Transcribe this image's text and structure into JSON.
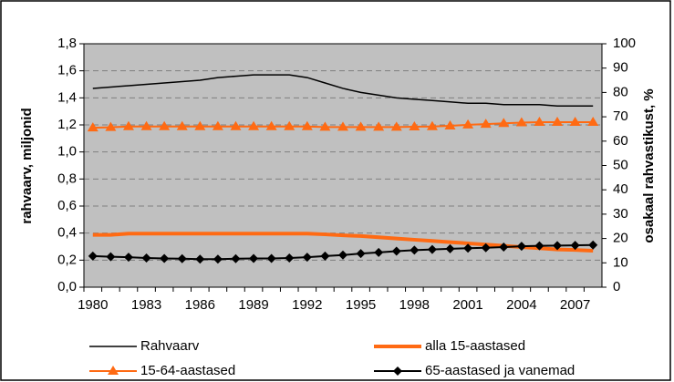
{
  "chart_data": {
    "type": "line",
    "y_label": "rahvaarv, miljonid",
    "y2_label": "osakaal rahvastikust, %",
    "categories": [
      "1980",
      null,
      null,
      "1983",
      null,
      null,
      "1986",
      null,
      null,
      "1989",
      null,
      null,
      "1992",
      null,
      null,
      "1995",
      null,
      null,
      "1998",
      null,
      null,
      "2001",
      null,
      null,
      "2004",
      null,
      null,
      "2007",
      null
    ],
    "ylim": [
      0,
      1.8
    ],
    "yticks": [
      {
        "value": 0,
        "label": "0,0"
      },
      {
        "value": 0.2,
        "label": "0,2"
      },
      {
        "value": 0.4,
        "label": "0,4"
      },
      {
        "value": 0.6,
        "label": "0,6"
      },
      {
        "value": 0.8,
        "label": "0,8"
      },
      {
        "value": 1.0,
        "label": "1,0"
      },
      {
        "value": 1.2,
        "label": "1,2"
      },
      {
        "value": 1.4,
        "label": "1,4"
      },
      {
        "value": 1.6,
        "label": "1,6"
      },
      {
        "value": 1.8,
        "label": "1,8"
      }
    ],
    "y2lim": [
      0,
      100
    ],
    "y2ticks": [
      0,
      10,
      20,
      30,
      40,
      50,
      60,
      70,
      80,
      90,
      100
    ],
    "grid": true,
    "background": "#c0c0c0",
    "series": [
      {
        "name": "Rahvaarv",
        "color": "#000000",
        "marker": "none",
        "line_width": 1.5,
        "values": [
          1.47,
          1.48,
          1.49,
          1.5,
          1.51,
          1.52,
          1.53,
          1.55,
          1.56,
          1.57,
          1.57,
          1.57,
          1.55,
          1.51,
          1.47,
          1.44,
          1.42,
          1.4,
          1.39,
          1.38,
          1.37,
          1.36,
          1.36,
          1.35,
          1.35,
          1.35,
          1.34,
          1.34,
          1.34
        ]
      },
      {
        "name": "alla 15-aastased",
        "color": "#ff6a13",
        "marker": "none",
        "line_width": 4,
        "axis": "y2",
        "values": [
          21.5,
          21.5,
          22,
          22,
          22,
          22,
          22,
          22,
          22,
          22,
          22,
          22,
          22,
          21.7,
          21.3,
          21,
          20.5,
          20,
          19.5,
          19,
          18.5,
          18,
          17.5,
          17,
          16.5,
          16,
          15.5,
          15.3,
          15
        ]
      },
      {
        "name": "15-64-aastased",
        "color": "#ff6a13",
        "marker": "triangle",
        "line_width": 2,
        "axis": "y2",
        "values": [
          65.5,
          65.7,
          66,
          66,
          66,
          66,
          66,
          66,
          66,
          66,
          66,
          66,
          66,
          65.8,
          65.8,
          65.8,
          65.8,
          65.8,
          65.9,
          66,
          66.3,
          66.7,
          67,
          67.3,
          67.6,
          67.8,
          67.8,
          67.8,
          67.8
        ]
      },
      {
        "name": "65-aastased ja vanemad",
        "color": "#000000",
        "marker": "diamond",
        "line_width": 2,
        "axis": "y2",
        "values": [
          12.8,
          12.5,
          12.3,
          12,
          11.8,
          11.7,
          11.5,
          11.5,
          11.7,
          11.8,
          11.8,
          12,
          12.3,
          12.8,
          13.2,
          13.8,
          14.3,
          14.8,
          15.2,
          15.5,
          15.8,
          16,
          16.2,
          16.5,
          16.8,
          17,
          17.1,
          17.2,
          17.3
        ]
      }
    ]
  }
}
